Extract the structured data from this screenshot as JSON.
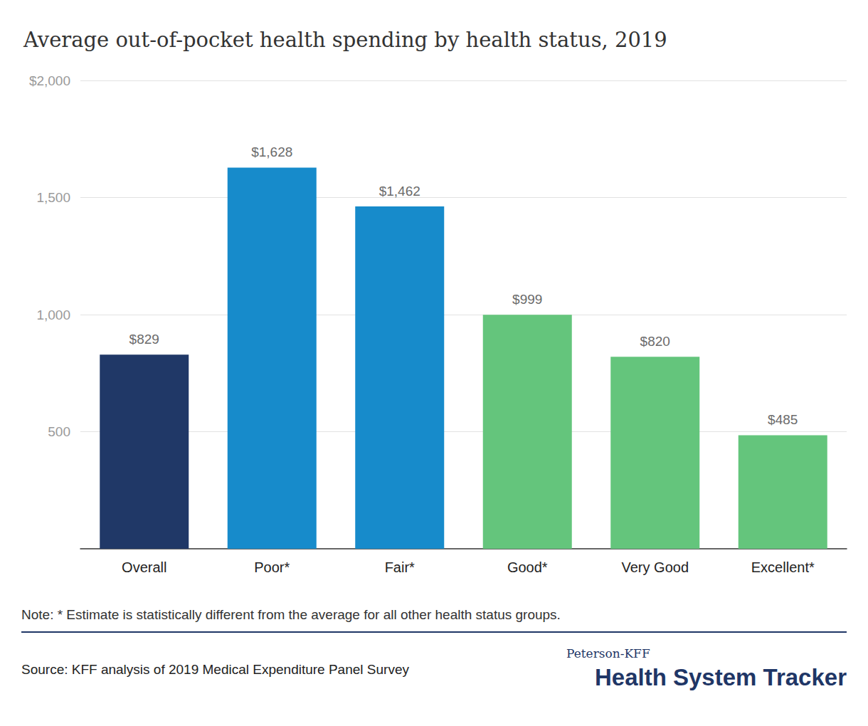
{
  "chart_data": {
    "type": "bar",
    "title": "Average out-of-pocket health spending by health status, 2019",
    "categories": [
      "Overall",
      "Poor*",
      "Fair*",
      "Good*",
      "Very Good",
      "Excellent*"
    ],
    "values": [
      829,
      1628,
      1462,
      999,
      820,
      485
    ],
    "value_labels": [
      "$829",
      "$1,628",
      "$1,462",
      "$999",
      "$820",
      "$485"
    ],
    "colors": [
      "#203867",
      "#178bcb",
      "#178bcb",
      "#64c57c",
      "#64c57c",
      "#64c57c"
    ],
    "ylim": [
      0,
      2000
    ],
    "yticks": [
      500,
      {
        "value": 1000,
        "label": "1,000"
      },
      {
        "value": 1500,
        "label": "1,500"
      },
      {
        "value": 2000,
        "label": "$2,000"
      }
    ],
    "grid": true,
    "data_labels": true,
    "note": "Note: * Estimate is statistically different from the average for all other health status groups.",
    "source": "Source: KFF analysis of 2019 Medical Expenditure Panel Survey",
    "credit": [
      "Peterson-KFF",
      "Health System Tracker"
    ]
  }
}
